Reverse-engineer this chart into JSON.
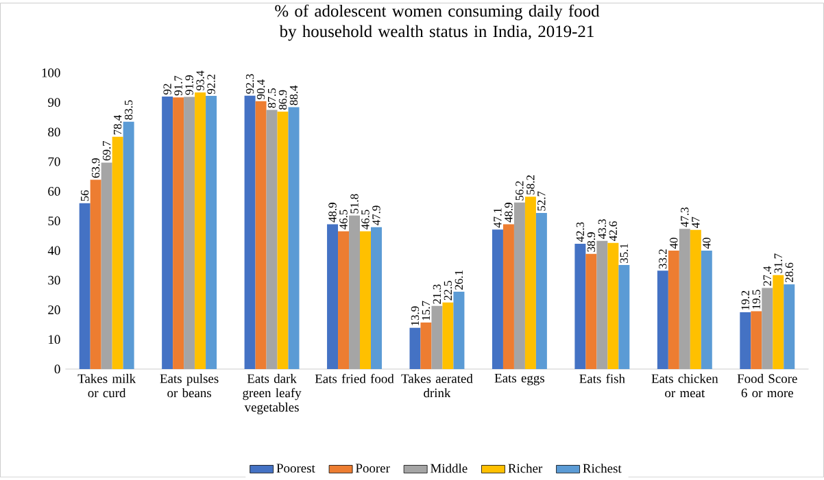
{
  "chart_data": {
    "type": "bar",
    "title": "% of adolescent women consuming daily food by household wealth status in India, 2019-21",
    "categories": [
      "Takes milk or curd",
      "Eats pulses or beans",
      "Eats dark green leafy vegetables",
      "Eats fried food",
      "Takes aerated drink",
      "Eats eggs",
      "Eats fish",
      "Eats chicken or meat",
      "Food Score 6 or more"
    ],
    "series": [
      {
        "name": "Poorest",
        "color": "#4472c4",
        "values": [
          56,
          92,
          92.3,
          48.9,
          13.9,
          47.1,
          42.3,
          33.2,
          19.2
        ]
      },
      {
        "name": "Poorer",
        "color": "#ed7d31",
        "values": [
          63.9,
          91.7,
          90.4,
          46.5,
          15.7,
          48.9,
          38.9,
          40,
          19.5
        ]
      },
      {
        "name": "Middle",
        "color": "#a5a5a5",
        "values": [
          69.7,
          91.9,
          87.5,
          51.8,
          21.3,
          56.2,
          43.3,
          47.3,
          27.4
        ]
      },
      {
        "name": "Richer",
        "color": "#ffc000",
        "values": [
          78.4,
          93.4,
          86.9,
          46.5,
          22.5,
          58.2,
          42.6,
          47,
          31.7
        ]
      },
      {
        "name": "Richest",
        "color": "#5b9bd5",
        "values": [
          83.5,
          92.2,
          88.4,
          47.9,
          26.1,
          52.7,
          35.1,
          40,
          28.6
        ]
      }
    ],
    "ylim": [
      0,
      100
    ],
    "yticks": [
      0,
      10,
      20,
      30,
      40,
      50,
      60,
      70,
      80,
      90,
      100
    ],
    "data_labels": true,
    "legend": "bottom",
    "grid": false
  }
}
